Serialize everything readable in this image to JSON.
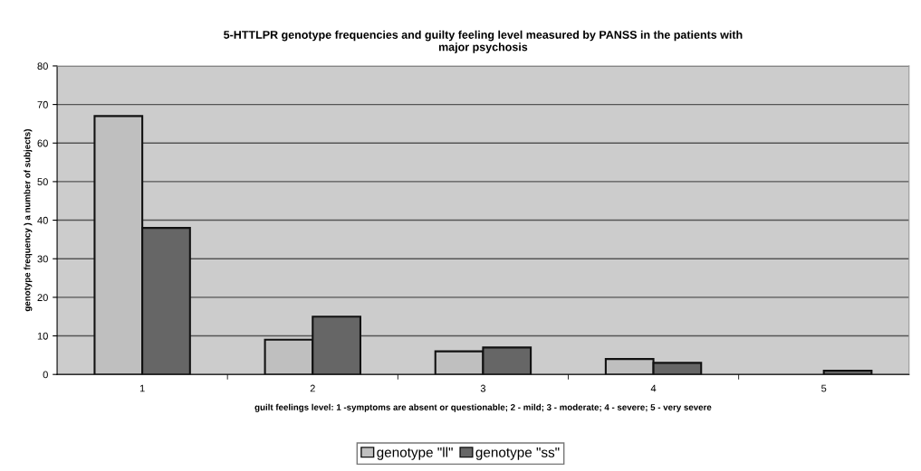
{
  "chart_data": {
    "type": "bar",
    "title": "5-HTTLPR genotype frequencies and guilty feeling level measured by PANSS in the patients with\nmajor psychosis",
    "xlabel": "guilt feelings level: 1 -symptoms are absent or questionable; 2 - mild; 3 - moderate; 4 - severe; 5 - very severe",
    "ylabel": "genotype frequency ) a number of subjects)",
    "categories": [
      "1",
      "2",
      "3",
      "4",
      "5"
    ],
    "series": [
      {
        "name": "genotype \"ll\"",
        "color": "#bfbfbf",
        "values": [
          67,
          9,
          6,
          4,
          null
        ]
      },
      {
        "name": "genotype \"ss\"",
        "color": "#666666",
        "values": [
          38,
          15,
          7,
          3,
          1
        ]
      }
    ],
    "ylim": [
      0,
      80
    ],
    "yticks": [
      0,
      10,
      20,
      30,
      40,
      50,
      60,
      70,
      80
    ],
    "grid": "y",
    "legend": "bottom"
  }
}
